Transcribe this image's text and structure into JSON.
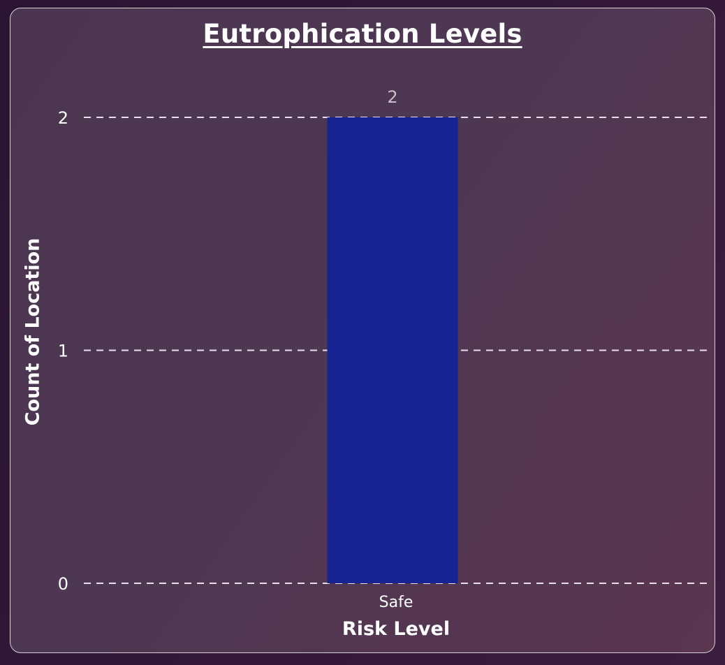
{
  "chart_data": {
    "type": "bar",
    "title": "Eutrophication Levels",
    "xlabel": "Risk Level",
    "ylabel": "Count of Location",
    "categories": [
      "Safe"
    ],
    "values": [
      2
    ],
    "data_labels": [
      "2"
    ],
    "ylim": [
      0,
      2
    ],
    "yticks": [
      0,
      1,
      2
    ],
    "ytick_labels": [
      "0",
      "1",
      "2"
    ],
    "grid": true,
    "grid_style": "dashed",
    "bar_color": "#172391",
    "text_color": "#ffffff",
    "data_label_color": "#c8c0c8",
    "grid_color": "#e8e2e8"
  }
}
